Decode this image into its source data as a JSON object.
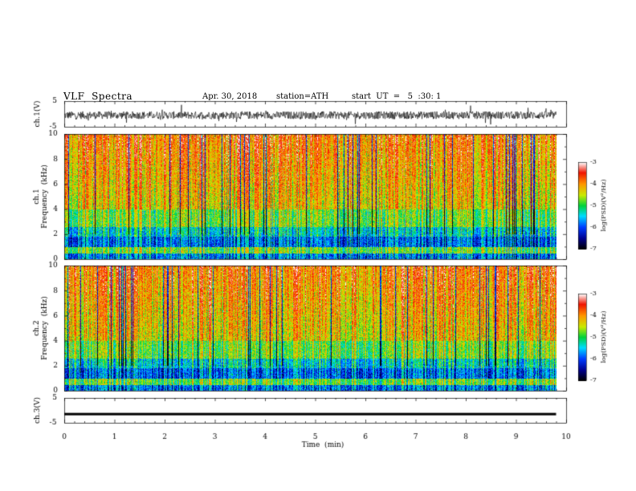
{
  "header": {
    "title": "VLF  Spectra",
    "date": "Apr. 30, 2018",
    "station": "station=ATH",
    "start": "start  UT  =   5  :30: 1"
  },
  "chart_data": [
    {
      "type": "line",
      "title": "",
      "ylabel": "ch.1(V)",
      "ylim": [
        -5,
        5
      ],
      "y_ticks": [
        "5",
        "-5"
      ],
      "xlim": [
        0,
        10
      ],
      "description_series": "noisy waveform around -0.5 V with spikes",
      "series": [
        {
          "values_mean": -0.5,
          "amplitude": 1.5
        }
      ]
    },
    {
      "type": "heatmap",
      "ylabel_lines": [
        "ch.1",
        "Frequency  (kHz)"
      ],
      "ylim": [
        0,
        10
      ],
      "y_ticks": [
        "0",
        "2",
        "4",
        "6",
        "8",
        "10"
      ],
      "xlim": [
        0,
        10
      ],
      "colorbar": {
        "label": "log(PSD)(V²/Hz)",
        "range": [
          -7,
          -3
        ],
        "ticks": [
          "-3",
          "-4",
          "-5",
          "-6",
          "-7"
        ]
      }
    },
    {
      "type": "heatmap",
      "ylabel_lines": [
        "ch.2",
        "Frequency  (kHz)"
      ],
      "ylim": [
        0,
        10
      ],
      "y_ticks": [
        "0",
        "2",
        "4",
        "6",
        "8",
        "10"
      ],
      "xlim": [
        0,
        10
      ],
      "colorbar": {
        "label": "log(PSD)(V²/Hz)",
        "range": [
          -7,
          -3
        ],
        "ticks": [
          "-3",
          "-4",
          "-5",
          "-6",
          "-7"
        ]
      }
    },
    {
      "type": "line",
      "ylabel": "ch.3(V)",
      "ylim": [
        -5,
        5
      ],
      "y_ticks": [
        "5",
        "-5"
      ],
      "xlim": [
        0,
        10
      ],
      "series": [
        {
          "values_mean": -1.5,
          "amplitude": 0.1
        }
      ]
    }
  ],
  "x_axis": {
    "label": "Time  (min)",
    "ticks": [
      "0",
      "1",
      "2",
      "3",
      "4",
      "5",
      "6",
      "7",
      "8",
      "9",
      "10"
    ]
  }
}
